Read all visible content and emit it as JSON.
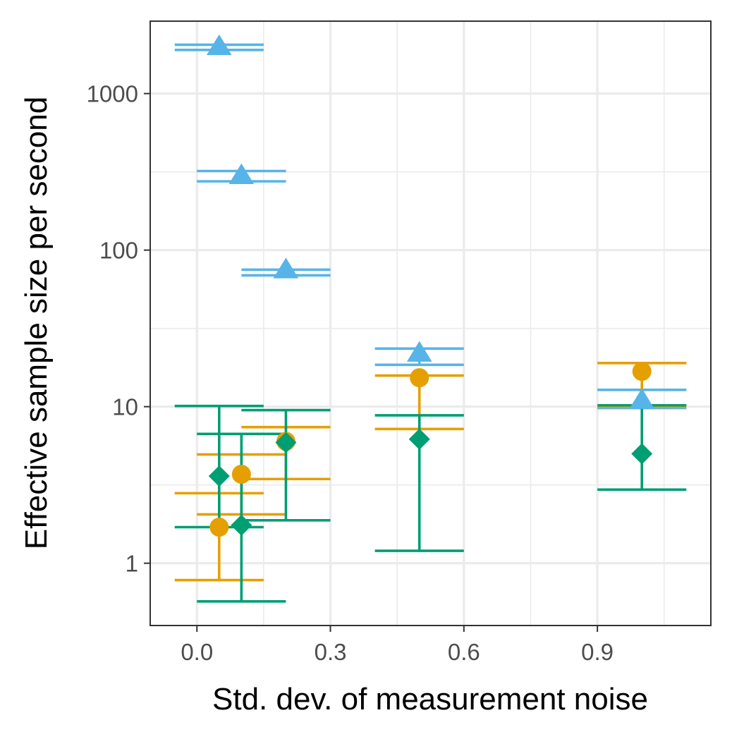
{
  "chart_data": {
    "type": "scatter",
    "title": "",
    "xlabel": "Std. dev. of measurement noise",
    "ylabel": "Effective sample size per second",
    "x_scale": "linear",
    "y_scale": "log10",
    "xlim": [
      -0.105,
      1.155
    ],
    "ylim": [
      0.4,
      2900
    ],
    "x_ticks": [
      0.0,
      0.3,
      0.6,
      0.9
    ],
    "x_tick_labels": [
      "0.0",
      "0.3",
      "0.6",
      "0.9"
    ],
    "y_ticks": [
      1,
      10,
      100,
      1000
    ],
    "y_tick_labels": [
      "1",
      "10",
      "100",
      "1000"
    ],
    "grid": true,
    "legend": "none",
    "series": [
      {
        "name": "triangle-series",
        "color": "#56B4E9",
        "marker": "triangle",
        "points": [
          {
            "x": 0.05,
            "y": 2000,
            "lo": 1900,
            "hi": 2050
          },
          {
            "x": 0.1,
            "y": 300,
            "lo": 275,
            "hi": 320
          },
          {
            "x": 0.2,
            "y": 75,
            "lo": 69,
            "hi": 75
          },
          {
            "x": 0.5,
            "y": 22,
            "lo": 18.5,
            "hi": 23.5
          },
          {
            "x": 1.0,
            "y": 11,
            "lo": 9.8,
            "hi": 12.8
          }
        ]
      },
      {
        "name": "circle-series",
        "color": "#E69F00",
        "marker": "circle",
        "points": [
          {
            "x": 0.05,
            "y": 1.7,
            "lo": 0.78,
            "hi": 2.8
          },
          {
            "x": 0.1,
            "y": 3.7,
            "lo": 2.05,
            "hi": 4.95
          },
          {
            "x": 0.2,
            "y": 6.0,
            "lo": 3.45,
            "hi": 7.4
          },
          {
            "x": 0.5,
            "y": 15.3,
            "lo": 7.2,
            "hi": 15.8
          },
          {
            "x": 1.0,
            "y": 16.8,
            "lo": 10.0,
            "hi": 19.0
          }
        ]
      },
      {
        "name": "diamond-series",
        "color": "#009E73",
        "marker": "diamond",
        "points": [
          {
            "x": 0.05,
            "y": 3.6,
            "lo": 1.7,
            "hi": 10.1
          },
          {
            "x": 0.1,
            "y": 1.75,
            "lo": 0.57,
            "hi": 6.7
          },
          {
            "x": 0.2,
            "y": 5.9,
            "lo": 1.88,
            "hi": 9.5
          },
          {
            "x": 0.5,
            "y": 6.2,
            "lo": 1.2,
            "hi": 8.8
          },
          {
            "x": 1.0,
            "y": 5.0,
            "lo": 2.95,
            "hi": 10.2
          }
        ]
      }
    ]
  }
}
